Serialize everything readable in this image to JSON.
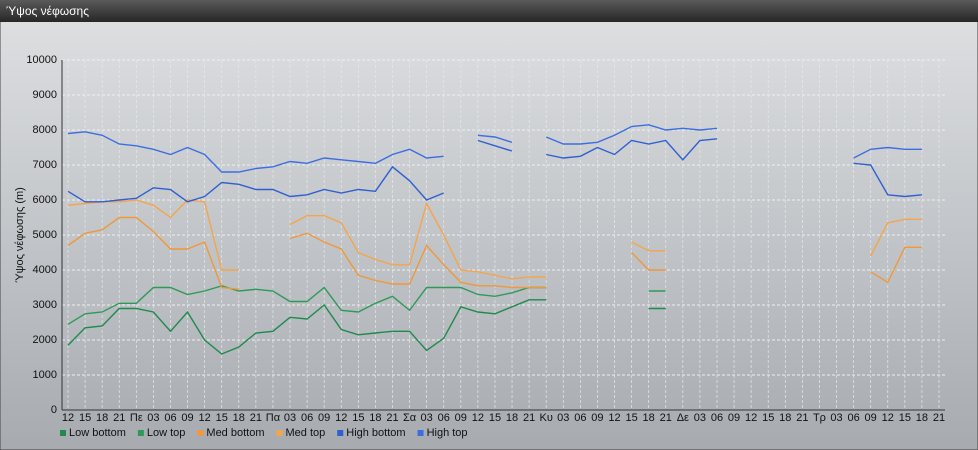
{
  "window_title": "Ύψος νέφωσης",
  "chart_data": {
    "type": "line",
    "y_label": "Ύψος νέφωσης (m)",
    "grid": true,
    "legend": "bottom",
    "categories": [
      "12",
      "15",
      "18",
      "21",
      "Πε",
      "03",
      "06",
      "09",
      "12",
      "15",
      "18",
      "21",
      "Πα",
      "03",
      "06",
      "09",
      "12",
      "15",
      "18",
      "21",
      "Σα",
      "03",
      "06",
      "09",
      "12",
      "15",
      "18",
      "21",
      "Κυ",
      "03",
      "06",
      "09",
      "12",
      "15",
      "18",
      "21",
      "Δε",
      "03",
      "06",
      "09",
      "12",
      "15",
      "18",
      "21",
      "Τρ",
      "03",
      "06",
      "09",
      "12",
      "15",
      "18",
      "21"
    ],
    "ylim": [
      0,
      10000
    ],
    "yticks": [
      0,
      1000,
      2000,
      3000,
      4000,
      5000,
      6000,
      7000,
      8000,
      9000,
      10000
    ],
    "series": [
      {
        "name": "Low bottom",
        "color": "#1e8a4c",
        "values": [
          1850,
          2350,
          2400,
          2900,
          2900,
          2800,
          2250,
          2800,
          2000,
          1600,
          1800,
          2200,
          2250,
          2650,
          2600,
          3000,
          2300,
          2150,
          2200,
          2250,
          2250,
          1700,
          2050,
          2950,
          2800,
          2750,
          2950,
          3150,
          3150,
          null,
          null,
          null,
          null,
          null,
          2900,
          2900,
          null,
          null,
          null,
          null,
          null,
          null,
          null,
          null,
          null,
          null,
          null,
          null,
          null,
          null,
          null,
          null
        ]
      },
      {
        "name": "Low top",
        "color": "#2e9a5a",
        "values": [
          2450,
          2750,
          2800,
          3050,
          3050,
          3500,
          3500,
          3300,
          3400,
          3550,
          3400,
          3450,
          3400,
          3100,
          3100,
          3500,
          2850,
          2800,
          3050,
          3250,
          2850,
          3500,
          3500,
          3500,
          3300,
          3250,
          3350,
          3500,
          3500,
          null,
          null,
          null,
          null,
          null,
          3400,
          3400,
          null,
          null,
          null,
          null,
          null,
          null,
          null,
          null,
          null,
          null,
          null,
          null,
          null,
          null,
          null,
          null
        ]
      },
      {
        "name": "Med bottom",
        "color": "#f0983a",
        "values": [
          4700,
          5050,
          5150,
          5500,
          5500,
          5100,
          4600,
          4600,
          4800,
          3500,
          3450,
          null,
          null,
          4900,
          5050,
          4800,
          4600,
          3850,
          3700,
          3600,
          3600,
          4700,
          4150,
          3650,
          3550,
          3550,
          3500,
          3500,
          3500,
          null,
          null,
          null,
          null,
          4500,
          4000,
          4000,
          null,
          null,
          null,
          null,
          null,
          null,
          null,
          null,
          null,
          null,
          null,
          3950,
          3650,
          4650,
          4650,
          null
        ]
      },
      {
        "name": "Med top",
        "color": "#f4a54c",
        "values": [
          5850,
          5900,
          5950,
          5950,
          6000,
          5850,
          5500,
          6000,
          5950,
          4000,
          4000,
          null,
          null,
          5300,
          5550,
          5550,
          5350,
          4500,
          4300,
          4150,
          4150,
          5900,
          5000,
          4000,
          3950,
          3850,
          3750,
          3800,
          3800,
          null,
          null,
          null,
          null,
          4800,
          4550,
          4550,
          null,
          null,
          null,
          null,
          null,
          null,
          null,
          null,
          null,
          null,
          null,
          4400,
          5350,
          5450,
          5450,
          null
        ]
      },
      {
        "name": "High bottom",
        "color": "#2f5fd0",
        "values": [
          6250,
          5950,
          5950,
          6000,
          6050,
          6350,
          6300,
          5950,
          6100,
          6500,
          6450,
          6300,
          6300,
          6100,
          6150,
          6300,
          6200,
          6300,
          6250,
          6950,
          6550,
          6000,
          6200,
          null,
          7700,
          7550,
          7400,
          null,
          7300,
          7200,
          7250,
          7500,
          7300,
          7700,
          7600,
          7700,
          7150,
          7700,
          7750,
          null,
          null,
          null,
          null,
          null,
          null,
          null,
          7050,
          7000,
          6150,
          6100,
          6150,
          null
        ]
      },
      {
        "name": "High top",
        "color": "#3d6ee0",
        "values": [
          7900,
          7950,
          7850,
          7600,
          7550,
          7450,
          7300,
          7500,
          7300,
          6800,
          6800,
          6900,
          6950,
          7100,
          7050,
          7200,
          7150,
          7100,
          7050,
          7300,
          7450,
          7200,
          7250,
          null,
          7850,
          7800,
          7650,
          null,
          7800,
          7600,
          7600,
          7650,
          7850,
          8100,
          8150,
          8000,
          8050,
          8000,
          8050,
          null,
          null,
          null,
          null,
          null,
          null,
          null,
          7200,
          7450,
          7500,
          7450,
          7450,
          null
        ]
      }
    ]
  }
}
